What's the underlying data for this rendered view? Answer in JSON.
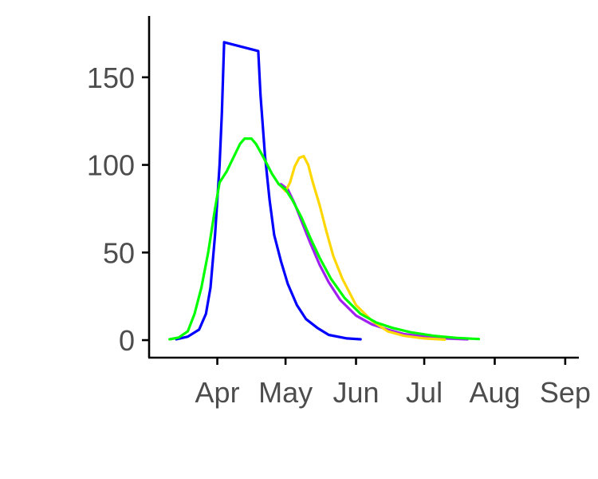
{
  "chart_data": {
    "type": "line",
    "title": "",
    "xlabel": "",
    "ylabel": "",
    "x_axis": {
      "kind": "date",
      "range": [
        "2020-03-02",
        "2020-09-07"
      ],
      "ticks": [
        {
          "date": "2020-04-01",
          "label": "Apr"
        },
        {
          "date": "2020-05-01",
          "label": "May"
        },
        {
          "date": "2020-06-01",
          "label": "Jun"
        },
        {
          "date": "2020-07-01",
          "label": "Jul"
        },
        {
          "date": "2020-08-01",
          "label": "Aug"
        },
        {
          "date": "2020-09-01",
          "label": "Sep"
        }
      ]
    },
    "y_axis": {
      "range": [
        -10,
        185
      ],
      "ticks": [
        0,
        50,
        100,
        150
      ]
    },
    "grid": false,
    "legend": "none",
    "series": [
      {
        "color": "#0000ff",
        "points": [
          [
            "2020-03-14",
            0.5
          ],
          [
            "2020-03-19",
            2
          ],
          [
            "2020-03-24",
            6
          ],
          [
            "2020-03-27",
            15
          ],
          [
            "2020-03-29",
            30
          ],
          [
            "2020-03-31",
            60
          ],
          [
            "2020-04-02",
            100
          ],
          [
            "2020-04-03",
            130
          ],
          [
            "2020-04-04",
            170
          ],
          [
            "2020-04-19",
            165
          ],
          [
            "2020-04-20",
            140
          ],
          [
            "2020-04-22",
            105
          ],
          [
            "2020-04-24",
            80
          ],
          [
            "2020-04-26",
            60
          ],
          [
            "2020-04-29",
            45
          ],
          [
            "2020-05-02",
            32
          ],
          [
            "2020-05-06",
            20
          ],
          [
            "2020-05-10",
            12
          ],
          [
            "2020-05-15",
            7
          ],
          [
            "2020-05-20",
            3
          ],
          [
            "2020-05-28",
            1
          ],
          [
            "2020-06-03",
            0.5
          ]
        ]
      },
      {
        "color": "#a020f0",
        "points": [
          [
            "2020-04-29",
            89
          ],
          [
            "2020-05-02",
            86
          ],
          [
            "2020-05-05",
            78
          ],
          [
            "2020-05-08",
            68
          ],
          [
            "2020-05-12",
            55
          ],
          [
            "2020-05-16",
            43
          ],
          [
            "2020-05-20",
            33
          ],
          [
            "2020-05-25",
            23
          ],
          [
            "2020-06-01",
            14
          ],
          [
            "2020-06-08",
            9
          ],
          [
            "2020-06-15",
            6
          ],
          [
            "2020-06-22",
            3.5
          ],
          [
            "2020-07-01",
            2
          ],
          [
            "2020-07-10",
            1
          ],
          [
            "2020-07-20",
            0.5
          ]
        ]
      },
      {
        "color": "#ffd700",
        "points": [
          [
            "2020-04-29",
            88
          ],
          [
            "2020-05-01",
            85
          ],
          [
            "2020-05-03",
            90
          ],
          [
            "2020-05-05",
            99
          ],
          [
            "2020-05-07",
            104
          ],
          [
            "2020-05-09",
            105
          ],
          [
            "2020-05-11",
            100
          ],
          [
            "2020-05-13",
            90
          ],
          [
            "2020-05-16",
            77
          ],
          [
            "2020-05-19",
            62
          ],
          [
            "2020-05-22",
            48
          ],
          [
            "2020-05-26",
            35
          ],
          [
            "2020-06-01",
            20
          ],
          [
            "2020-06-08",
            11
          ],
          [
            "2020-06-15",
            5
          ],
          [
            "2020-06-22",
            2.5
          ],
          [
            "2020-07-01",
            1
          ],
          [
            "2020-07-10",
            0.3
          ]
        ]
      },
      {
        "color": "#00ff00",
        "points": [
          [
            "2020-03-11",
            0.5
          ],
          [
            "2020-03-15",
            1.5
          ],
          [
            "2020-03-19",
            5
          ],
          [
            "2020-03-22",
            15
          ],
          [
            "2020-03-25",
            30
          ],
          [
            "2020-03-28",
            50
          ],
          [
            "2020-03-31",
            75
          ],
          [
            "2020-04-02",
            90
          ],
          [
            "2020-04-05",
            96
          ],
          [
            "2020-04-08",
            104
          ],
          [
            "2020-04-11",
            112
          ],
          [
            "2020-04-13",
            115
          ],
          [
            "2020-04-16",
            115
          ],
          [
            "2020-04-18",
            112
          ],
          [
            "2020-04-21",
            105
          ],
          [
            "2020-04-25",
            95
          ],
          [
            "2020-04-28",
            89
          ],
          [
            "2020-05-01",
            86
          ],
          [
            "2020-05-04",
            80
          ],
          [
            "2020-05-08",
            70
          ],
          [
            "2020-05-12",
            58
          ],
          [
            "2020-05-16",
            47
          ],
          [
            "2020-05-21",
            35
          ],
          [
            "2020-05-27",
            24
          ],
          [
            "2020-06-03",
            15
          ],
          [
            "2020-06-10",
            10
          ],
          [
            "2020-06-17",
            7
          ],
          [
            "2020-06-25",
            4.5
          ],
          [
            "2020-07-05",
            2.5
          ],
          [
            "2020-07-15",
            1.3
          ],
          [
            "2020-07-25",
            0.6
          ]
        ]
      }
    ]
  }
}
